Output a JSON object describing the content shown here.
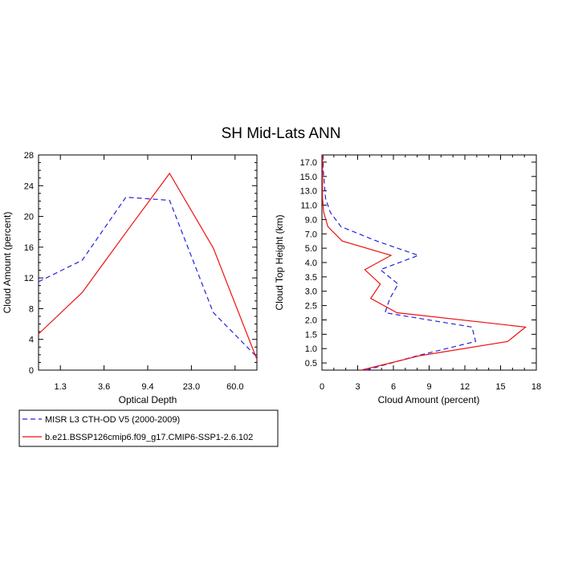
{
  "figure_title": "SH Mid-Lats ANN",
  "legend": {
    "entries": [
      {
        "label": "MISR L3 CTH-OD V5 (2000-2009)",
        "color": "#2222dd",
        "dashed": true
      },
      {
        "label": "b.e21.BSSP126cmip6.f09_g17.CMIP6-SSP1-2.6.102",
        "color": "#ee1111",
        "dashed": false
      }
    ]
  },
  "chart_data": [
    {
      "type": "line",
      "title": "",
      "xlabel": "Optical Depth",
      "ylabel": "Cloud Amount (percent)",
      "x_tick_labels": [
        "1.3",
        "3.6",
        "9.4",
        "23.0",
        "60.0"
      ],
      "x_tick_positions": [
        0.5,
        1.5,
        2.5,
        3.5,
        4.5
      ],
      "xlim": [
        0,
        5
      ],
      "ylim": [
        0,
        28
      ],
      "y_ticks": [
        0,
        4,
        8,
        12,
        16,
        20,
        24,
        28
      ],
      "series": [
        {
          "name": "MISR L3 CTH-OD V5 (2000-2009)",
          "color": "#2222dd",
          "dashed": true,
          "x": [
            0,
            1,
            2,
            3,
            4,
            5
          ],
          "values": [
            11.5,
            14.3,
            22.5,
            22.1,
            7.5,
            1.7
          ]
        },
        {
          "name": "b.e21.BSSP126cmip6.f09_g17.CMIP6-SSP1-2.6.102",
          "color": "#ee1111",
          "dashed": false,
          "x": [
            0,
            1,
            2,
            3,
            4,
            5
          ],
          "values": [
            4.7,
            10.1,
            17.9,
            25.6,
            15.9,
            1.4
          ]
        }
      ]
    },
    {
      "type": "line",
      "title": "",
      "xlabel": "Cloud Amount (percent)",
      "ylabel": "Cloud Top Height (km)",
      "x_ticks": [
        0,
        3,
        6,
        9,
        12,
        15,
        18
      ],
      "xlim": [
        0,
        18
      ],
      "y_tick_labels": [
        "0.5",
        "1.0",
        "1.5",
        "2.0",
        "2.5",
        "3.0",
        "3.5",
        "4.0",
        "5.0",
        "7.0",
        "9.0",
        "11.0",
        "13.0",
        "15.0",
        "17.0"
      ],
      "y_levels": 15,
      "series": [
        {
          "name": "MISR L3 CTH-OD V5 (2000-2009)",
          "color": "#2222dd",
          "dashed": true,
          "values": [
            3.7,
            8.0,
            12.9,
            12.6,
            5.3,
            5.7,
            6.4,
            4.9,
            8.1,
            4.6,
            1.6,
            0.7,
            0.3,
            0.2,
            0.1,
            0.1
          ]
        },
        {
          "name": "b.e21.BSSP126cmip6.f09_g17.CMIP6-SSP1-2.6.102",
          "color": "#ee1111",
          "dashed": false,
          "values": [
            3.3,
            8.2,
            15.6,
            17.1,
            6.3,
            4.1,
            4.9,
            3.6,
            5.8,
            1.7,
            0.5,
            0.15,
            0.05,
            0.05,
            0.05,
            0.05
          ]
        }
      ]
    }
  ]
}
